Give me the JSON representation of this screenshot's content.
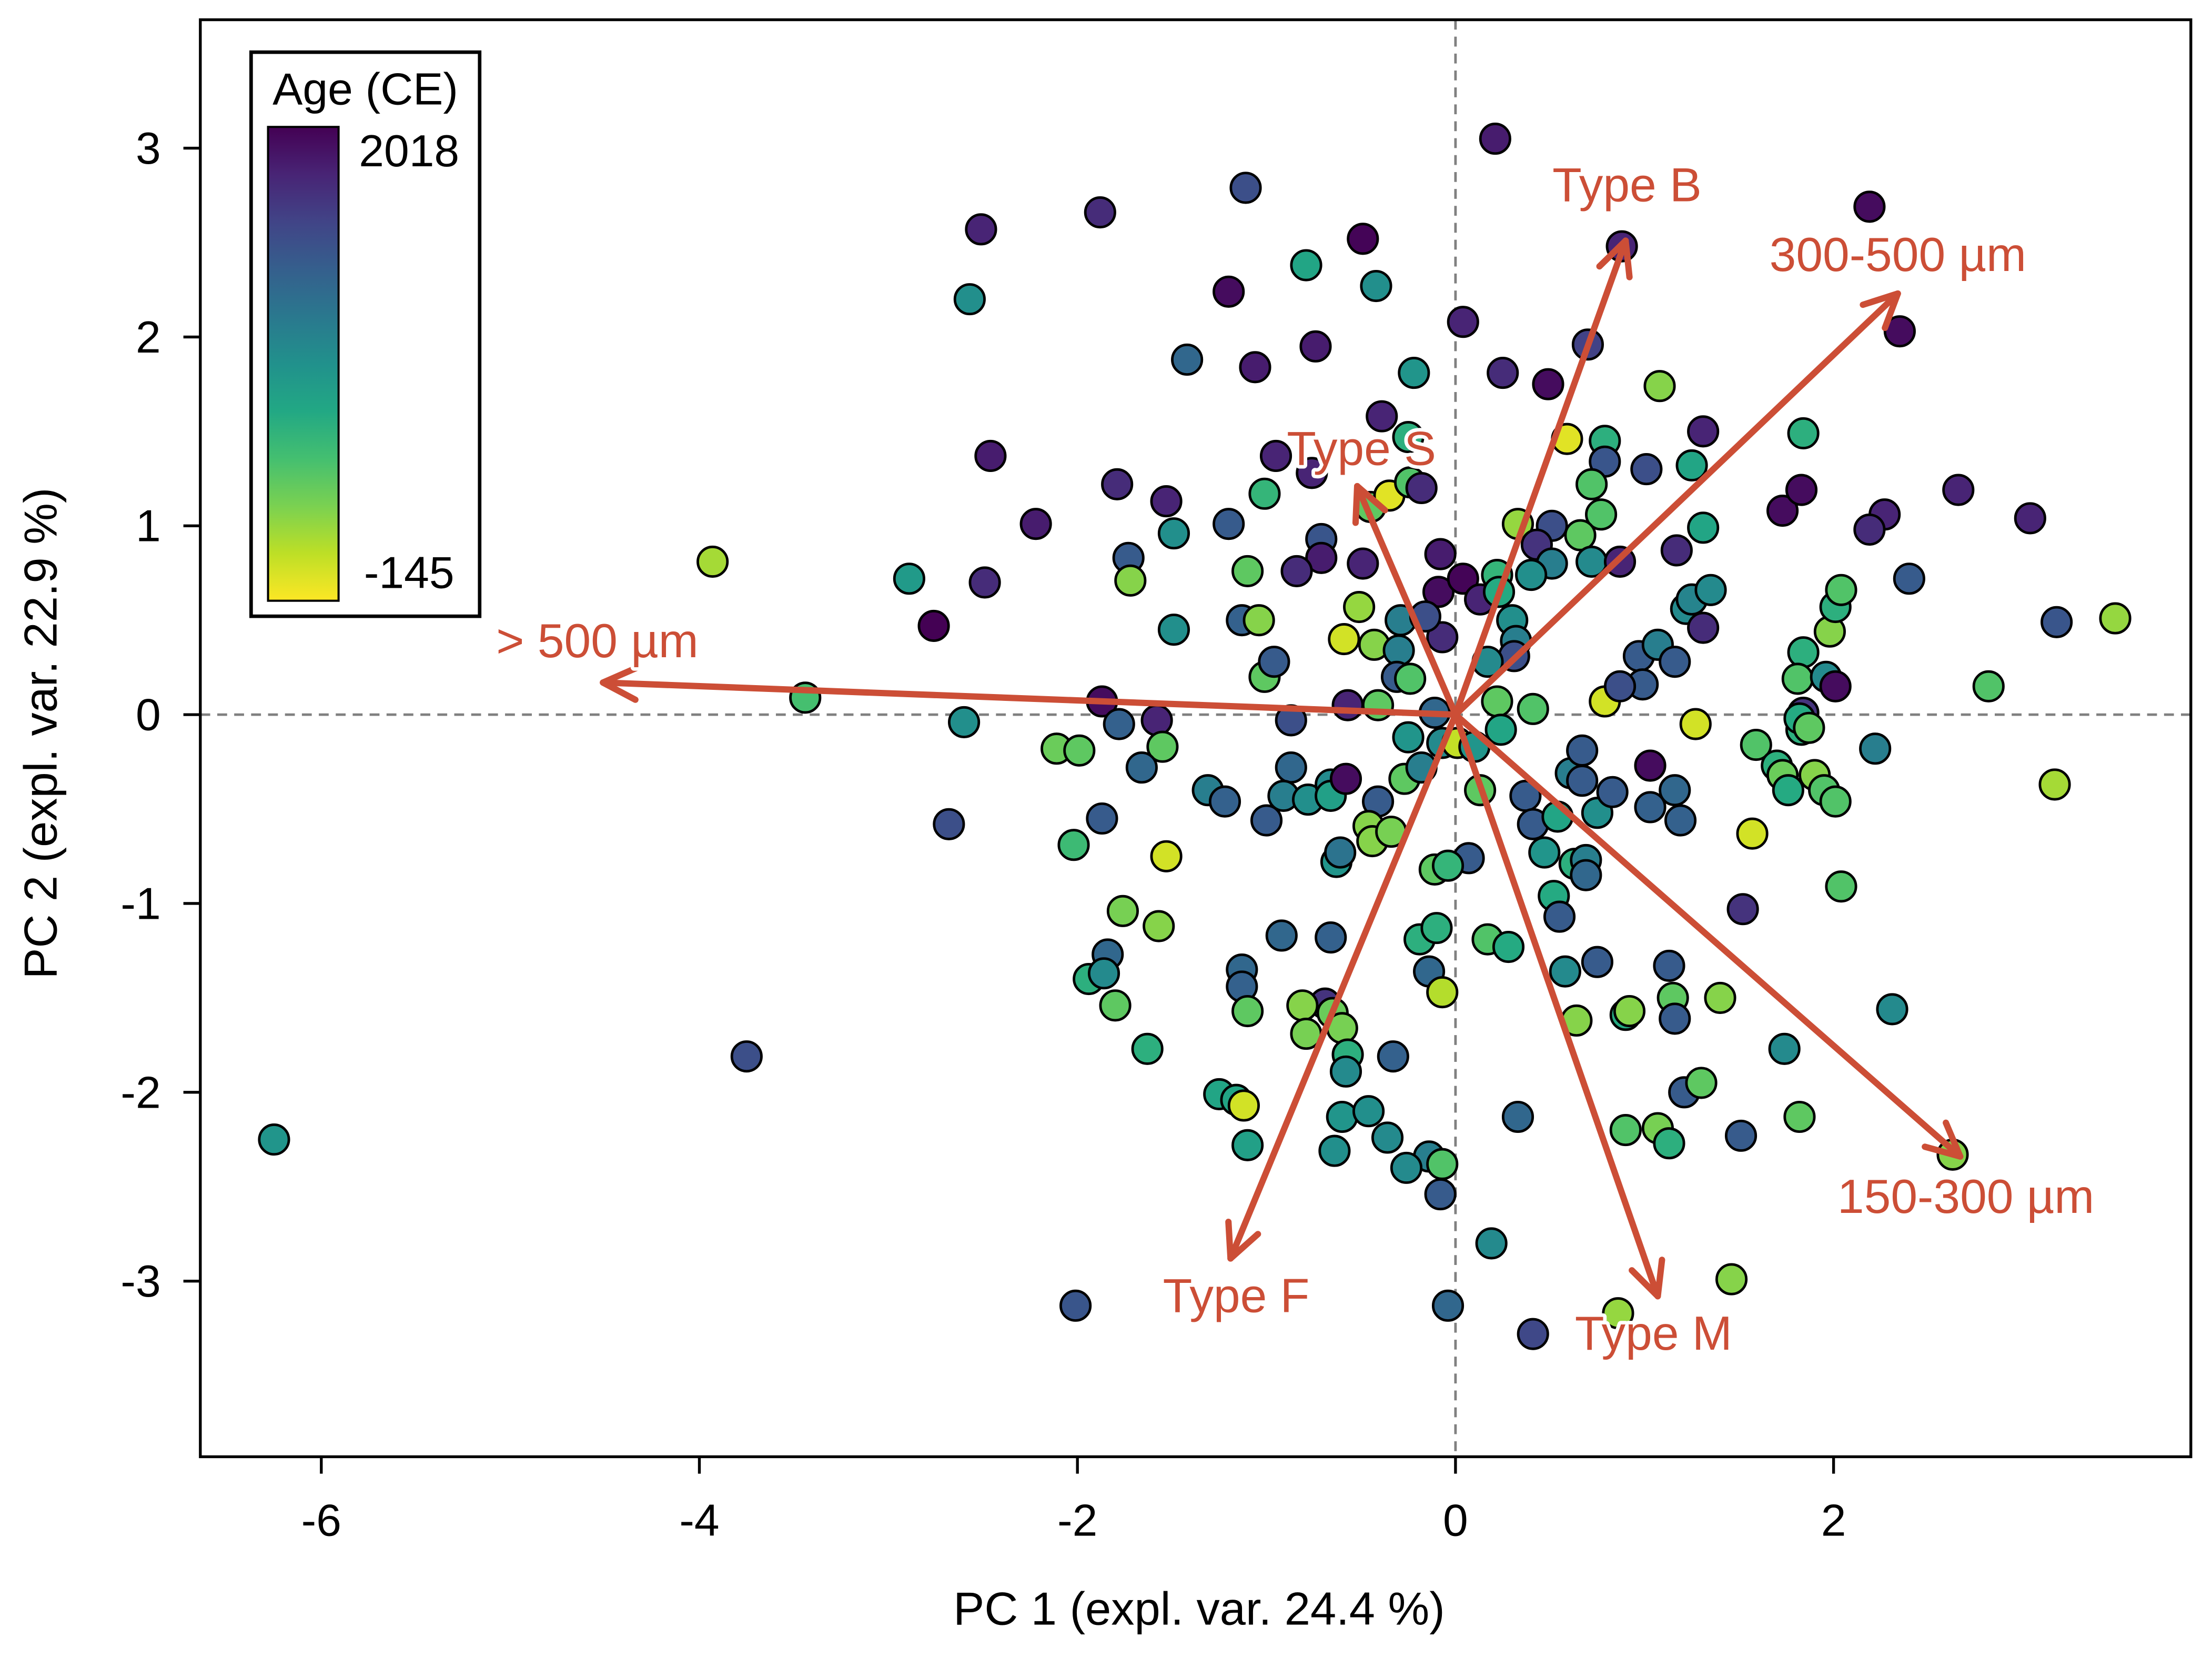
{
  "chart_data": {
    "type": "scatter",
    "subtype": "pca-biplot",
    "xlabel": "PC 1 (expl. var. 24.4 %)",
    "ylabel": "PC 2 (expl. var. 22.9 %)",
    "xlim": [
      -6.64,
      3.89
    ],
    "ylim": [
      -3.93,
      3.68
    ],
    "xticks": [
      -6,
      -4,
      -2,
      0,
      2
    ],
    "yticks": [
      -3,
      -2,
      -1,
      0,
      1,
      2,
      3
    ],
    "reference_lines": {
      "x": 0,
      "y": 0,
      "style": "dashed",
      "color": "#808080"
    },
    "grid": false,
    "legend": {
      "title": "Age (CE)",
      "placement": "top-left",
      "type": "colorbar",
      "colormap": "viridis",
      "max_label": "2018",
      "min_label": "-145",
      "range": [
        -145,
        2018
      ]
    },
    "arrow_color": "#cc4e36",
    "loadings": [
      {
        "label": "Type B",
        "x": 0.9,
        "y": 2.51
      },
      {
        "label": "300-500 µm",
        "x": 2.34,
        "y": 2.23
      },
      {
        "label": "Type S",
        "x": -0.52,
        "y": 1.21
      },
      {
        "label": "> 500 µm",
        "x": -4.51,
        "y": 0.17
      },
      {
        "label": "150-300 µm",
        "x": 2.67,
        "y": -2.34
      },
      {
        "label": "Type M",
        "x": 1.07,
        "y": -3.08
      },
      {
        "label": "Type F",
        "x": -1.19,
        "y": -2.88
      }
    ],
    "point_fields": [
      "pc1",
      "pc2",
      "age_ce"
    ],
    "points": [
      [
        -6.25,
        -2.25,
        900
      ],
      [
        -3.93,
        0.81,
        150
      ],
      [
        -3.75,
        -1.81,
        1500
      ],
      [
        -3.44,
        0.09,
        500
      ],
      [
        -2.89,
        0.72,
        850
      ],
      [
        -2.76,
        0.47,
        2018
      ],
      [
        -2.68,
        -0.58,
        1500
      ],
      [
        -2.6,
        -0.04,
        950
      ],
      [
        -2.51,
        2.57,
        1800
      ],
      [
        -2.57,
        2.2,
        950
      ],
      [
        -2.46,
        1.37,
        1850
      ],
      [
        -2.49,
        0.7,
        1750
      ],
      [
        -2.22,
        1.01,
        1850
      ],
      [
        -1.88,
        2.66,
        1750
      ],
      [
        -1.87,
        0.07,
        1950
      ],
      [
        -2.11,
        -0.18,
        350
      ],
      [
        -1.99,
        -0.19,
        400
      ],
      [
        -2.02,
        -0.69,
        550
      ],
      [
        -1.87,
        -0.55,
        1400
      ],
      [
        -1.78,
        -0.05,
        1350
      ],
      [
        -1.79,
        1.22,
        1750
      ],
      [
        -1.73,
        0.83,
        1400
      ],
      [
        -1.72,
        0.71,
        250
      ],
      [
        -1.58,
        -0.03,
        1800
      ],
      [
        -1.55,
        -0.17,
        400
      ],
      [
        -1.66,
        -0.28,
        1300
      ],
      [
        -1.53,
        1.13,
        1800
      ],
      [
        -1.49,
        0.96,
        950
      ],
      [
        -1.49,
        0.45,
        950
      ],
      [
        -1.42,
        1.88,
        1300
      ],
      [
        -1.84,
        -1.27,
        1300
      ],
      [
        -1.76,
        -1.04,
        300
      ],
      [
        -1.57,
        -1.12,
        250
      ],
      [
        -1.53,
        -0.75,
        0
      ],
      [
        -1.94,
        -1.4,
        650
      ],
      [
        -1.86,
        -1.37,
        1000
      ],
      [
        -1.8,
        -1.54,
        400
      ],
      [
        -1.63,
        -1.77,
        650
      ],
      [
        -1.31,
        -0.4,
        1100
      ],
      [
        -1.22,
        -0.46,
        1350
      ],
      [
        -1.2,
        1.01,
        1400
      ],
      [
        -1.2,
        2.24,
        1950
      ],
      [
        -1.11,
        2.79,
        1500
      ],
      [
        -1.06,
        1.84,
        1850
      ],
      [
        -1.1,
        0.76,
        400
      ],
      [
        -1.13,
        0.5,
        1350
      ],
      [
        -1.04,
        0.5,
        250
      ],
      [
        -1.01,
        0.2,
        400
      ],
      [
        -0.96,
        0.28,
        1400
      ],
      [
        -1.01,
        1.17,
        600
      ],
      [
        -0.95,
        1.37,
        1800
      ],
      [
        -0.87,
        -0.03,
        1500
      ],
      [
        -0.87,
        -0.28,
        1300
      ],
      [
        -1.0,
        -0.56,
        1400
      ],
      [
        -0.91,
        -0.43,
        1100
      ],
      [
        -0.78,
        -0.45,
        950
      ],
      [
        -1.13,
        -1.35,
        1300
      ],
      [
        -1.13,
        -1.44,
        1350
      ],
      [
        -1.1,
        -1.57,
        400
      ],
      [
        -0.92,
        -1.17,
        1300
      ],
      [
        -1.25,
        -2.01,
        750
      ],
      [
        -1.16,
        -2.04,
        750
      ],
      [
        -1.12,
        -2.07,
        0
      ],
      [
        -1.1,
        -2.28,
        800
      ],
      [
        -0.79,
        2.38,
        750
      ],
      [
        -0.74,
        1.95,
        1850
      ],
      [
        -0.76,
        1.28,
        1800
      ],
      [
        -0.71,
        0.93,
        1450
      ],
      [
        -0.71,
        0.83,
        1850
      ],
      [
        -0.84,
        0.76,
        1750
      ],
      [
        -0.66,
        -0.37,
        1000
      ],
      [
        -0.66,
        -0.43,
        800
      ],
      [
        -0.63,
        -0.78,
        900
      ],
      [
        -0.61,
        -0.73,
        1200
      ],
      [
        -0.66,
        -1.18,
        1350
      ],
      [
        -0.69,
        -1.53,
        1700
      ],
      [
        -0.65,
        -1.58,
        350
      ],
      [
        -0.81,
        -1.54,
        250
      ],
      [
        -0.79,
        -1.69,
        300
      ],
      [
        -0.6,
        -1.66,
        300
      ],
      [
        -0.57,
        -1.8,
        650
      ],
      [
        -0.58,
        -1.89,
        1000
      ],
      [
        -0.6,
        -2.13,
        900
      ],
      [
        -0.64,
        -2.31,
        950
      ],
      [
        -0.46,
        -2.1,
        950
      ],
      [
        -0.49,
        2.52,
        2000
      ],
      [
        -0.42,
        2.27,
        950
      ],
      [
        -0.39,
        1.58,
        1800
      ],
      [
        -0.49,
        0.8,
        1800
      ],
      [
        -0.51,
        0.57,
        200
      ],
      [
        -0.59,
        0.4,
        0
      ],
      [
        -0.43,
        0.37,
        250
      ],
      [
        -0.57,
        0.05,
        1800
      ],
      [
        -0.41,
        0.05,
        400
      ],
      [
        -0.58,
        -0.34,
        1950
      ],
      [
        -0.41,
        -0.46,
        1400
      ],
      [
        -0.46,
        -0.59,
        250
      ],
      [
        -0.44,
        -0.67,
        250
      ],
      [
        -0.34,
        -0.62,
        300
      ],
      [
        -0.33,
        -1.81,
        1350
      ],
      [
        -0.36,
        -2.24,
        1000
      ],
      [
        -0.45,
        1.1,
        400
      ],
      [
        -0.35,
        1.16,
        -50
      ],
      [
        -0.25,
        1.47,
        650
      ],
      [
        -0.24,
        1.23,
        450
      ],
      [
        -0.18,
        1.2,
        1750
      ],
      [
        -0.22,
        1.81,
        900
      ],
      [
        -0.29,
        0.5,
        1100
      ],
      [
        -0.3,
        0.34,
        1100
      ],
      [
        -0.31,
        0.2,
        1400
      ],
      [
        -0.24,
        0.19,
        450
      ],
      [
        -0.25,
        -0.12,
        900
      ],
      [
        -0.27,
        -0.34,
        400
      ],
      [
        -0.18,
        -0.28,
        1100
      ],
      [
        -0.08,
        0.85,
        1850
      ],
      [
        -0.09,
        0.65,
        1950
      ],
      [
        -0.07,
        0.41,
        1750
      ],
      [
        -0.16,
        0.52,
        1500
      ],
      [
        -0.11,
        0.01,
        1300
      ],
      [
        -0.07,
        -0.15,
        1000
      ],
      [
        0.01,
        -0.15,
        50
      ],
      [
        0.07,
        -0.76,
        1400
      ],
      [
        -0.11,
        -0.82,
        400
      ],
      [
        -0.04,
        -0.8,
        600
      ],
      [
        -0.19,
        -1.19,
        650
      ],
      [
        -0.1,
        -1.13,
        650
      ],
      [
        -0.14,
        -1.36,
        1300
      ],
      [
        -0.07,
        -1.47,
        100
      ],
      [
        -0.14,
        -2.34,
        1100
      ],
      [
        -0.07,
        -2.38,
        450
      ],
      [
        -0.08,
        -2.54,
        1400
      ],
      [
        -0.04,
        -3.13,
        1300
      ],
      [
        -0.26,
        -2.4,
        1000
      ],
      [
        0.04,
        2.08,
        1800
      ],
      [
        0.21,
        3.05,
        1850
      ],
      [
        0.25,
        1.81,
        1750
      ],
      [
        0.49,
        1.75,
        1950
      ],
      [
        0.7,
        1.96,
        1600
      ],
      [
        0.59,
        1.46,
        -50
      ],
      [
        0.79,
        1.45,
        650
      ],
      [
        0.79,
        1.34,
        1450
      ],
      [
        0.72,
        1.22,
        450
      ],
      [
        0.77,
        1.06,
        450
      ],
      [
        0.51,
        1.0,
        1500
      ],
      [
        0.33,
        1.01,
        200
      ],
      [
        0.66,
        0.95,
        400
      ],
      [
        0.43,
        0.9,
        1700
      ],
      [
        0.51,
        0.8,
        1100
      ],
      [
        0.72,
        0.81,
        1000
      ],
      [
        0.87,
        0.81,
        1800
      ],
      [
        1.01,
        1.3,
        1500
      ],
      [
        1.08,
        1.74,
        250
      ],
      [
        1.31,
        1.5,
        1800
      ],
      [
        1.25,
        1.32,
        750
      ],
      [
        1.31,
        0.99,
        750
      ],
      [
        1.17,
        0.87,
        1750
      ],
      [
        0.22,
        0.74,
        600
      ],
      [
        0.4,
        0.74,
        950
      ],
      [
        0.04,
        0.72,
        2000
      ],
      [
        0.13,
        0.61,
        1800
      ],
      [
        0.23,
        0.65,
        700
      ],
      [
        0.3,
        0.5,
        950
      ],
      [
        0.32,
        0.39,
        1100
      ],
      [
        0.31,
        0.31,
        1500
      ],
      [
        0.17,
        0.28,
        1000
      ],
      [
        0.22,
        0.07,
        400
      ],
      [
        0.41,
        0.03,
        450
      ],
      [
        0.24,
        -0.08,
        750
      ],
      [
        0.1,
        -0.17,
        900
      ],
      [
        0.13,
        -0.4,
        400
      ],
      [
        0.37,
        -0.43,
        1400
      ],
      [
        0.41,
        -0.58,
        1400
      ],
      [
        0.47,
        -0.73,
        900
      ],
      [
        0.54,
        -0.54,
        750
      ],
      [
        0.61,
        -0.31,
        1100
      ],
      [
        0.67,
        -0.19,
        1400
      ],
      [
        0.67,
        -0.35,
        1400
      ],
      [
        0.63,
        -0.79,
        650
      ],
      [
        0.69,
        -0.77,
        1100
      ],
      [
        0.69,
        -0.85,
        1300
      ],
      [
        0.52,
        -0.96,
        700
      ],
      [
        0.55,
        -1.07,
        1400
      ],
      [
        0.75,
        -0.52,
        950
      ],
      [
        0.83,
        -0.41,
        1400
      ],
      [
        0.58,
        -1.36,
        1000
      ],
      [
        0.75,
        -1.31,
        1400
      ],
      [
        0.64,
        -1.62,
        250
      ],
      [
        0.9,
        -1.59,
        700
      ],
      [
        0.92,
        -1.57,
        250
      ],
      [
        1.13,
        -1.33,
        1400
      ],
      [
        1.15,
        -1.5,
        400
      ],
      [
        1.16,
        -1.61,
        1400
      ],
      [
        1.21,
        -2.0,
        1400
      ],
      [
        1.3,
        -1.95,
        400
      ],
      [
        1.4,
        -1.5,
        250
      ],
      [
        0.9,
        -2.2,
        450
      ],
      [
        1.07,
        -2.19,
        300
      ],
      [
        1.13,
        -2.27,
        650
      ],
      [
        1.51,
        -2.23,
        1400
      ],
      [
        0.86,
        -3.17,
        200
      ],
      [
        0.41,
        -3.28,
        1550
      ],
      [
        0.33,
        -2.13,
        1300
      ],
      [
        0.19,
        -2.8,
        1000
      ],
      [
        0.17,
        -1.19,
        450
      ],
      [
        0.28,
        -1.23,
        700
      ],
      [
        0.79,
        0.07,
        0
      ],
      [
        0.97,
        0.31,
        1400
      ],
      [
        1.07,
        0.37,
        1100
      ],
      [
        0.99,
        0.16,
        1400
      ],
      [
        0.87,
        0.15,
        1500
      ],
      [
        1.16,
        0.28,
        1400
      ],
      [
        1.03,
        -0.49,
        1350
      ],
      [
        1.03,
        -0.27,
        1950
      ],
      [
        1.16,
        -0.4,
        1300
      ],
      [
        1.19,
        -0.56,
        1350
      ],
      [
        1.27,
        -0.05,
        0
      ],
      [
        1.22,
        0.56,
        1000
      ],
      [
        1.25,
        0.61,
        1050
      ],
      [
        1.31,
        0.46,
        1750
      ],
      [
        1.35,
        0.66,
        1000
      ],
      [
        1.59,
        -0.16,
        450
      ],
      [
        1.57,
        -0.63,
        0
      ],
      [
        1.52,
        -1.03,
        1700
      ],
      [
        1.7,
        -0.27,
        650
      ],
      [
        1.73,
        -0.32,
        350
      ],
      [
        1.76,
        -0.4,
        700
      ],
      [
        1.83,
        -0.08,
        650
      ],
      [
        1.84,
        0.33,
        650
      ],
      [
        1.81,
        0.19,
        450
      ],
      [
        1.84,
        0.01,
        1700
      ],
      [
        1.82,
        -0.02,
        700
      ],
      [
        1.87,
        -0.07,
        400
      ],
      [
        1.9,
        -0.32,
        250
      ],
      [
        1.95,
        -0.4,
        450
      ],
      [
        2.01,
        -0.46,
        450
      ],
      [
        1.96,
        0.2,
        1000
      ],
      [
        2.01,
        0.15,
        1950
      ],
      [
        1.98,
        0.44,
        250
      ],
      [
        2.01,
        0.57,
        650
      ],
      [
        2.04,
        0.66,
        450
      ],
      [
        2.04,
        -0.91,
        450
      ],
      [
        1.84,
        1.49,
        650
      ],
      [
        1.73,
        1.08,
        1950
      ],
      [
        1.83,
        1.19,
        1950
      ],
      [
        2.19,
        2.69,
        1950
      ],
      [
        2.35,
        2.03,
        1950
      ],
      [
        2.27,
        1.06,
        1800
      ],
      [
        2.19,
        0.98,
        1750
      ],
      [
        2.4,
        0.72,
        1400
      ],
      [
        2.22,
        -0.18,
        1100
      ],
      [
        2.31,
        -1.56,
        1000
      ],
      [
        1.74,
        -1.77,
        1000
      ],
      [
        1.82,
        -2.13,
        400
      ],
      [
        1.46,
        -2.99,
        250
      ],
      [
        2.63,
        -2.33,
        250
      ],
      [
        2.66,
        1.19,
        1800
      ],
      [
        3.04,
        1.04,
        1800
      ],
      [
        3.18,
        0.49,
        1450
      ],
      [
        2.82,
        0.15,
        450
      ],
      [
        3.17,
        -0.37,
        150
      ],
      [
        3.49,
        0.51,
        200
      ],
      [
        -2.01,
        -3.13,
        1450
      ],
      [
        0.88,
        2.48,
        1800
      ]
    ]
  }
}
